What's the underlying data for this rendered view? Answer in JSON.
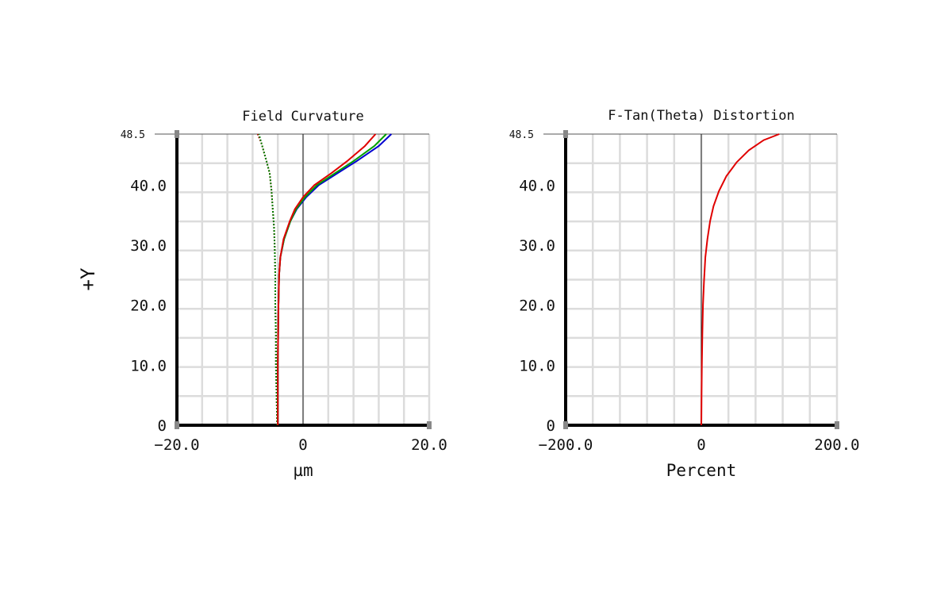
{
  "shared": {
    "ylabel": "+Y",
    "ylim": [
      0,
      48.5
    ],
    "yticks": [
      0,
      10,
      20,
      30,
      40,
      48.5
    ],
    "ytick_labels": [
      "0",
      "10.0",
      "20.0",
      "30.0",
      "40.0",
      "48.5"
    ]
  },
  "chart_data": [
    {
      "type": "line",
      "title": "Field Curvature",
      "xlabel": "µm",
      "xlim": [
        -20,
        20
      ],
      "xticks": [
        -20,
        0,
        20
      ],
      "xtick_labels": [
        "−20.0",
        "0",
        "20.0"
      ],
      "ylim": [
        0,
        48.5
      ],
      "grid": true,
      "series": [
        {
          "style": "dashed",
          "color": "#c00000",
          "x": [
            -4.1,
            -4.2,
            -4.3,
            -4.3,
            -4.4,
            -4.4,
            -4.5,
            -4.6,
            -4.8,
            -5.0,
            -5.3,
            -5.8,
            -6.6,
            -7.2
          ],
          "y": [
            0,
            5,
            10,
            15,
            20,
            25,
            30,
            33,
            36,
            39,
            42,
            44,
            47,
            48.5
          ]
        },
        {
          "style": "dashed",
          "color": "#008000",
          "x": [
            -4.1,
            -4.2,
            -4.3,
            -4.3,
            -4.4,
            -4.4,
            -4.5,
            -4.6,
            -4.8,
            -5.0,
            -5.3,
            -5.8,
            -6.6,
            -7.0
          ],
          "y": [
            0,
            5,
            10,
            15,
            20,
            25,
            30,
            33,
            36,
            39,
            42,
            44,
            47,
            48.5
          ]
        },
        {
          "style": "solid",
          "color": "#0000d0",
          "x": [
            -4.0,
            -4.0,
            -3.9,
            -3.8,
            -3.6,
            -3.0,
            -2.0,
            -1.0,
            0.5,
            2.5,
            5.5,
            8.5,
            12.0,
            14.0
          ],
          "y": [
            0,
            10,
            20,
            25,
            28,
            31,
            34,
            36,
            38,
            40,
            42,
            44,
            46.5,
            48.5
          ]
        },
        {
          "style": "solid",
          "color": "#00a000",
          "x": [
            -4.0,
            -4.0,
            -3.9,
            -3.8,
            -3.6,
            -3.0,
            -2.0,
            -1.1,
            0.3,
            2.2,
            5.1,
            8.0,
            11.3,
            13.2
          ],
          "y": [
            0,
            10,
            20,
            25,
            28,
            31,
            34,
            36,
            38,
            40,
            42,
            44,
            46.5,
            48.5
          ]
        },
        {
          "style": "solid",
          "color": "#e00000",
          "x": [
            -4.0,
            -4.0,
            -3.9,
            -3.8,
            -3.6,
            -3.1,
            -2.1,
            -1.3,
            0.0,
            1.8,
            4.5,
            7.0,
            9.8,
            11.5
          ],
          "y": [
            0,
            10,
            20,
            25,
            28,
            31,
            34,
            36,
            38,
            40,
            42,
            44,
            46.5,
            48.5
          ]
        }
      ]
    },
    {
      "type": "line",
      "title": "F-Tan(Theta) Distortion",
      "xlabel": "Percent",
      "xlim": [
        -200,
        200
      ],
      "xticks": [
        -200,
        0,
        200
      ],
      "xtick_labels": [
        "−200.0",
        "0",
        "200.0"
      ],
      "ylim": [
        0,
        48.5
      ],
      "grid": true,
      "series": [
        {
          "style": "solid",
          "color": "#e00000",
          "x": [
            0,
            0.3,
            0.8,
            1.5,
            2.5,
            4.0,
            6.0,
            9.0,
            13.0,
            18.0,
            26.0,
            37.0,
            52.0,
            70.0,
            92.0,
            115.0
          ],
          "y": [
            0,
            5,
            10,
            15,
            20,
            24,
            28,
            31,
            34,
            36.5,
            39,
            41.5,
            43.8,
            45.8,
            47.5,
            48.5
          ]
        }
      ]
    }
  ]
}
